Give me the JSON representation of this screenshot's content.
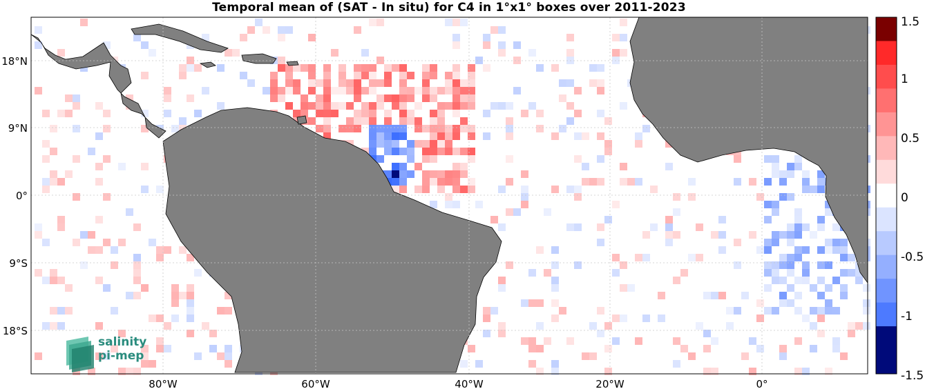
{
  "title": "Temporal mean of (SAT - In situ) for C4 in 1°x1° boxes over 2011-2023",
  "lon_labels": [
    "80°W",
    "60°W",
    "40°W",
    "20°W",
    "0°"
  ],
  "lat_labels": [
    "18°N",
    "9°N",
    "0°",
    "9°S",
    "18°S"
  ],
  "colorbar": {
    "labels": [
      "1.5",
      "1",
      "0.5",
      "0",
      "-0.5",
      "-1",
      "-1.5"
    ],
    "values": [
      1.5,
      1,
      0.5,
      0,
      -0.5,
      -1,
      -1.5
    ],
    "range": [
      -1.5,
      1.5
    ]
  },
  "colors": {
    "land": "#808080",
    "coast": "#000000",
    "grid": "#d0d0d0",
    "ocean": "#ffffff",
    "logo_text": "#2a8c7e"
  },
  "logo": {
    "line1": "salinity",
    "line2": "pi-mep"
  }
}
